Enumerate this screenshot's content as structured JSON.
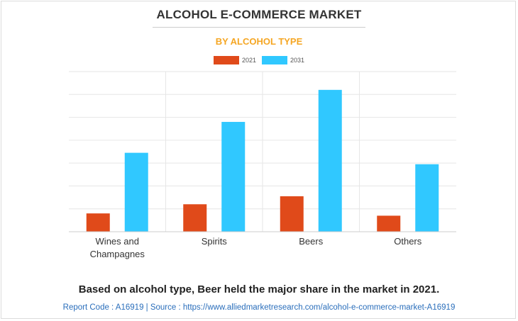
{
  "header": {
    "title": "ALCOHOL E-COMMERCE MARKET",
    "subtitle": "BY ALCOHOL TYPE"
  },
  "legend": {
    "items": [
      {
        "label": "2021",
        "color": "#e04a1a"
      },
      {
        "label": "2031",
        "color": "#30c8ff"
      }
    ]
  },
  "chart_data": {
    "type": "bar",
    "categories": [
      [
        "Wines and",
        "Champagnes"
      ],
      [
        "Spirits"
      ],
      [
        "Beers"
      ],
      [
        "Others"
      ]
    ],
    "series": [
      {
        "name": "2021",
        "color": "#e04a1a",
        "values": [
          0.8,
          1.2,
          1.55,
          0.7
        ]
      },
      {
        "name": "2031",
        "color": "#30c8ff",
        "values": [
          3.45,
          4.8,
          6.2,
          2.95
        ]
      }
    ],
    "ylim": [
      0,
      7
    ],
    "grid": true,
    "legend_position": "top-center"
  },
  "caption": "Based on alcohol type, Beer held the major share in the market in 2021.",
  "footer": "Report Code : A16919  |  Source : https://www.alliedmarketresearch.com/alcohol-e-commerce-market-A16919"
}
